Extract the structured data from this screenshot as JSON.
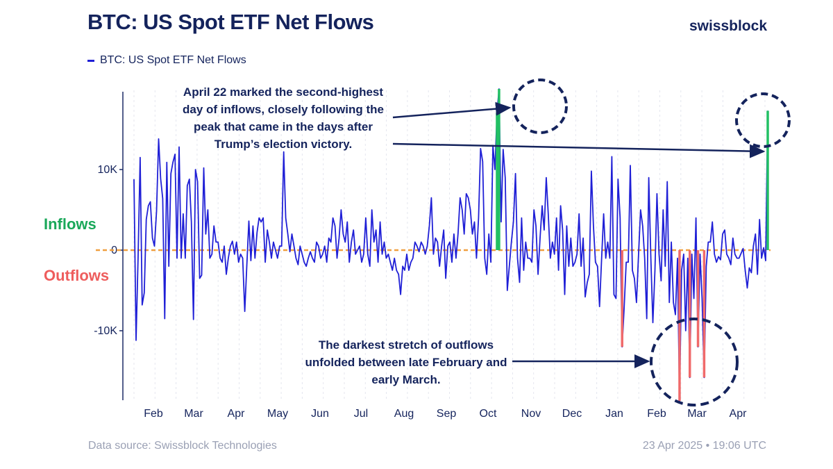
{
  "header": {
    "title": "BTC: US Spot ETF Net Flows",
    "brand": "swissblock"
  },
  "legend": {
    "label": "BTC: US Spot ETF Net Flows"
  },
  "side_labels": {
    "inflows": "Inflows",
    "outflows": "Outflows"
  },
  "annotations": {
    "top": [
      "April 22 marked the second-highest",
      "day of inflows, closely following the",
      "peak that came in the days after",
      "Trump’s election victory."
    ],
    "bottom": [
      "The darkest stretch of outflows",
      "unfolded between late February and",
      "early March."
    ]
  },
  "footer": {
    "source": "Data source: Swissblock Technologies",
    "timestamp": "23 Apr 2025 • 19:06 UTC"
  },
  "colors": {
    "line": "#1f1fd6",
    "inflow_highlight": "#22c064",
    "outflow_highlight": "#f06a6a",
    "zero_line": "#f0a040",
    "axis": "#1c2a66",
    "circle": "#14235c"
  },
  "chart_data": {
    "type": "line",
    "title": "BTC: US Spot ETF Net Flows",
    "xlabel": "",
    "ylabel": "",
    "ylim": [
      -18500,
      19500
    ],
    "yticks": [
      -10000,
      0,
      10000
    ],
    "ytick_labels": [
      "-10K",
      "0",
      "10K"
    ],
    "grid": "vertical dashed",
    "legend_position": "top-left",
    "xaxis_month_labels": [
      "Feb",
      "Mar",
      "Apr",
      "May",
      "Jun",
      "Jul",
      "Aug",
      "Sep",
      "Oct",
      "Nov",
      "Dec",
      "Jan",
      "Feb",
      "Mar",
      "Apr"
    ],
    "series": [
      {
        "name": "BTC: US Spot ETF Net Flows",
        "values": [
          8800,
          -11200,
          -1000,
          11500,
          -6800,
          -5300,
          3800,
          5500,
          6000,
          1500,
          500,
          4800,
          13800,
          8900,
          6400,
          -8500,
          10900,
          -2000,
          9500,
          10900,
          11900,
          -1000,
          12800,
          -1000,
          4500,
          -1000,
          8000,
          8800,
          3500,
          -8600,
          10000,
          8500,
          -3500,
          -3100,
          10200,
          2000,
          5000,
          -1000,
          -500,
          3000,
          1000,
          1000,
          -1000,
          -1500,
          500,
          -3000,
          -1000,
          500,
          1100,
          -500,
          1000,
          -1500,
          -500,
          -1000,
          -7600,
          -2000,
          3600,
          -1300,
          3000,
          -1000,
          2200,
          4000,
          3500,
          4000,
          -1500,
          2500,
          1000,
          -1000,
          1000,
          0,
          -1000,
          500,
          500,
          12200,
          4000,
          2000,
          -200,
          2000,
          500,
          -1000,
          -1800,
          500,
          -500,
          -1500,
          -2000,
          -1000,
          -200,
          -1000,
          -1500,
          1000,
          500,
          -1000,
          -500,
          500,
          -1500,
          1500,
          1000,
          4000,
          3000,
          -1000,
          1500,
          5000,
          2000,
          1000,
          3500,
          -1500,
          1000,
          2500,
          -500,
          0,
          500,
          -1500,
          -500,
          4000,
          -500,
          -2000,
          5000,
          1000,
          2500,
          -1500,
          3500,
          -500,
          1000,
          -1000,
          -500,
          -1500,
          -2500,
          -1000,
          -2500,
          -3000,
          -5500,
          -2000,
          -2500,
          -500,
          -2500,
          -1500,
          -1000,
          1000,
          500,
          -200,
          1000,
          500,
          -500,
          500,
          3000,
          6500,
          -500,
          1500,
          1000,
          -2000,
          500,
          2500,
          -3500,
          500,
          1000,
          -1500,
          2000,
          -1000,
          2000,
          6500,
          5000,
          2000,
          7000,
          6500,
          5000,
          2000,
          3500,
          -1000,
          4000,
          12600,
          11000,
          -1000,
          -3000,
          2000,
          -1500,
          13000,
          10000,
          17000,
          20000,
          3500,
          12500,
          9000,
          -5000,
          -2000,
          1000,
          3500,
          9500,
          -1000,
          -4000,
          4000,
          -2500,
          1000,
          -1000,
          -1000,
          -1500,
          5000,
          3000,
          -3000,
          1500,
          5500,
          2500,
          9000,
          4500,
          -1000,
          1000,
          -500,
          4000,
          -2500,
          5500,
          2500,
          -5500,
          3000,
          -2000,
          1500,
          -2000,
          -1500,
          -500,
          4500,
          -2000,
          1500,
          -5800,
          -4000,
          -3000,
          9800,
          3000,
          -1500,
          -2000,
          -7000,
          -1000,
          4500,
          -1000,
          1000,
          -1000,
          11600,
          -5500,
          -6000,
          8800,
          4000,
          -12000,
          -7000,
          -1500,
          -1500,
          10500,
          -2500,
          -3500,
          -6500,
          -500,
          5000,
          3000,
          -1000,
          -8500,
          9000,
          -1000,
          -9000,
          -2500,
          7000,
          -500,
          -3800,
          5000,
          -2000,
          8500,
          -6500,
          1000,
          -6500,
          -8000,
          -1000,
          -18700,
          -2500,
          -500,
          -10000,
          -1000,
          -15800,
          -500,
          -6000,
          4000,
          -12000,
          -500,
          -6000,
          -15800,
          -2000,
          1000,
          1000,
          3500,
          -500,
          -1500,
          -800,
          -1200,
          2000,
          2500,
          -500,
          -1000,
          -1800,
          1500,
          -500,
          -1000,
          -1000,
          -400,
          200,
          -2500,
          -4700,
          -2200,
          -2800,
          500,
          2000,
          -3000,
          3800,
          -1000,
          300,
          -1300,
          17300
        ]
      }
    ],
    "highlights": [
      {
        "type": "inflow",
        "period": "early Nov (days after election)",
        "values": [
          17000,
          20000
        ]
      },
      {
        "type": "inflow",
        "period": "April 22",
        "values": [
          17300
        ]
      },
      {
        "type": "outflow",
        "period": "late Feb - early Mar",
        "values": [
          -18700,
          -15800,
          -12000,
          -15800
        ]
      }
    ]
  }
}
